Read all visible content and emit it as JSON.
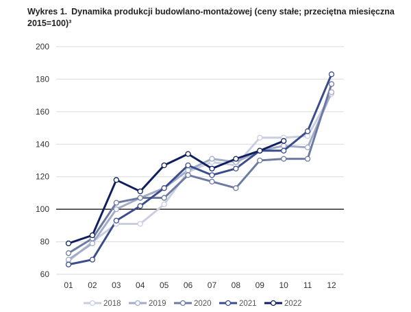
{
  "chart_data": {
    "type": "line",
    "title_number": "Wykres 1.",
    "title": "Dynamika produkcji budowlano-montażowej (ceny stałe; przeciętna miesięczna 2015=100)³",
    "categories": [
      "01",
      "02",
      "03",
      "04",
      "05",
      "06",
      "07",
      "08",
      "09",
      "10",
      "11",
      "12"
    ],
    "ylim": [
      60,
      200
    ],
    "yticks": [
      60,
      80,
      100,
      120,
      140,
      160,
      180,
      200
    ],
    "reference_line": 100,
    "grid": true,
    "legend": "bottom",
    "series": [
      {
        "name": "2018",
        "color": "#c9cee0",
        "values": [
          68,
          80,
          91,
          91,
          103,
          123,
          129,
          127,
          144,
          144,
          145,
          171
        ]
      },
      {
        "name": "2019",
        "color": "#a2abc7",
        "values": [
          69,
          79,
          100,
          107,
          113,
          124,
          131,
          129,
          136,
          139,
          138,
          172
        ]
      },
      {
        "name": "2020",
        "color": "#6d7aa3",
        "values": [
          73,
          82,
          104,
          107,
          107,
          121,
          117,
          113,
          130,
          131,
          131,
          177
        ]
      },
      {
        "name": "2021",
        "color": "#3b4c8c",
        "values": [
          66,
          69,
          93,
          102,
          113,
          127,
          121,
          125,
          136,
          136,
          148,
          183
        ]
      },
      {
        "name": "2022",
        "color": "#0f1f5e",
        "values": [
          79,
          84,
          118,
          111,
          127,
          134,
          125,
          131,
          136,
          142,
          null,
          null
        ]
      }
    ]
  }
}
